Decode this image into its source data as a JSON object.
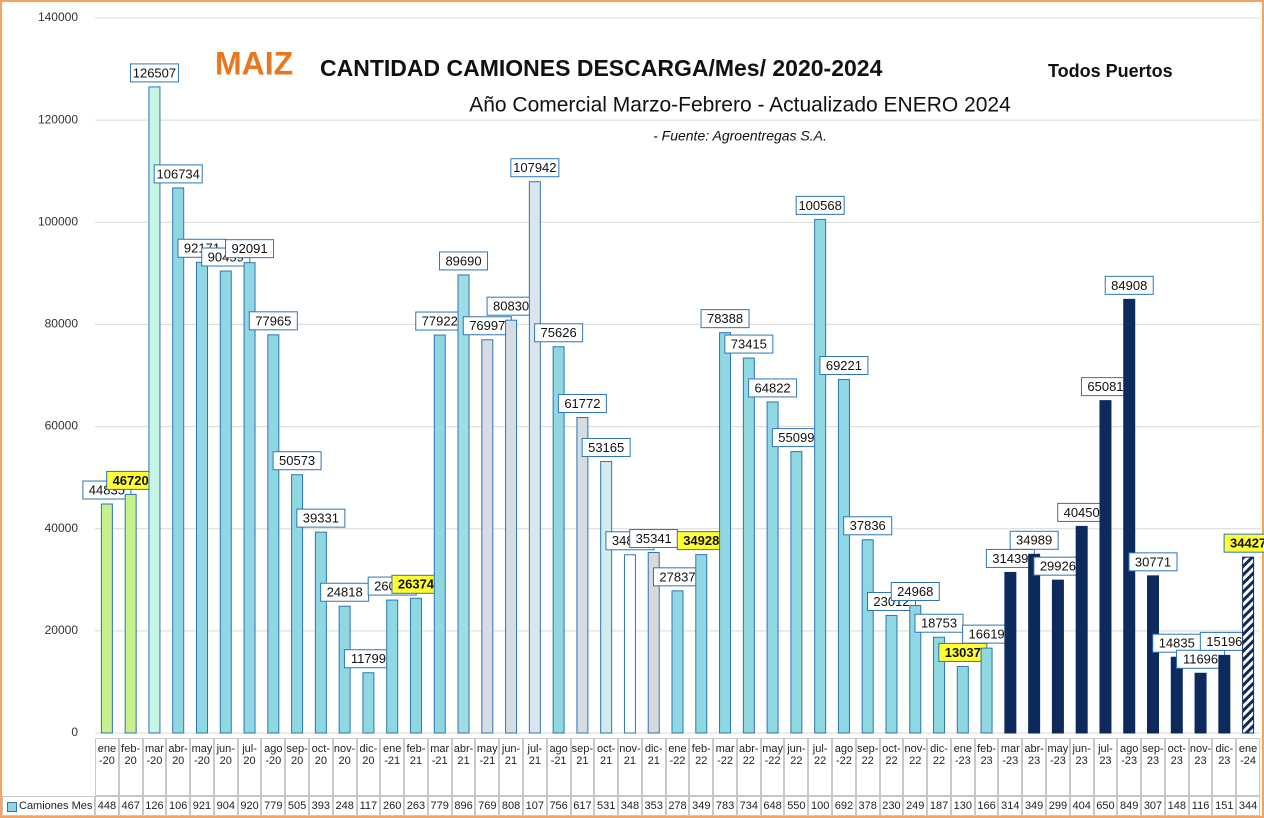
{
  "chart_data": {
    "type": "bar",
    "title_highlight": "MAIZ",
    "title": "CANTIDAD CAMIONES DESCARGA/Mes/ 2020-2024",
    "title_suffix": "Todos Puertos",
    "subtitle": "Año Comercial Marzo-Febrero - Actualizado ENERO  2024",
    "source": "- Fuente: Agroentregas S.A.",
    "categories": [
      "ene-20",
      "feb-20",
      "mar-20",
      "abr-20",
      "may-20",
      "jun-20",
      "jul-20",
      "ago-20",
      "sep-20",
      "oct-20",
      "nov-20",
      "dic-20",
      "ene-21",
      "feb-21",
      "mar-21",
      "abr-21",
      "may-21",
      "jun-21",
      "jul-21",
      "ago-21",
      "sep-21",
      "oct-21",
      "nov-21",
      "dic-21",
      "ene-22",
      "feb-22",
      "mar-22",
      "abr-22",
      "may-22",
      "jun-22",
      "jul-22",
      "ago-22",
      "sep-22",
      "oct-22",
      "nov-22",
      "dic-22",
      "ene-23",
      "feb-23",
      "mar-23",
      "abr-23",
      "may-23",
      "jun-23",
      "jul-23",
      "ago-23",
      "sep-23",
      "oct-23",
      "nov-23",
      "dic-23",
      "ene-24"
    ],
    "series": [
      {
        "name": "Camiones Mes",
        "values": [
          44835,
          46720,
          126507,
          106734,
          92171,
          90459,
          92091,
          77965,
          50573,
          39331,
          24818,
          11799,
          26028,
          26374,
          77922,
          89690,
          76997,
          80830,
          107942,
          75626,
          61772,
          53165,
          34898,
          35341,
          27837,
          34928,
          78388,
          73415,
          64822,
          55099,
          100568,
          69221,
          37836,
          23012,
          24968,
          18753,
          13037,
          16619,
          31439,
          34989,
          29926,
          40450,
          65081,
          84908,
          30771,
          14835,
          11696,
          15196,
          34427
        ],
        "table_labels": [
          "448",
          "467",
          "126",
          "106",
          "921",
          "904",
          "920",
          "779",
          "505",
          "393",
          "248",
          "117",
          "260",
          "263",
          "779",
          "896",
          "769",
          "808",
          "107",
          "756",
          "617",
          "531",
          "348",
          "353",
          "278",
          "349",
          "783",
          "734",
          "648",
          "550",
          "100",
          "692",
          "378",
          "230",
          "249",
          "187",
          "130",
          "166",
          "314",
          "349",
          "299",
          "404",
          "650",
          "849",
          "307",
          "148",
          "116",
          "151",
          "344"
        ],
        "colors": [
          "#c5f08a",
          "#c5f08a",
          "#c8f4e6",
          "#8fd8e2",
          "#8fd8e2",
          "#8fd8e2",
          "#8fd8e2",
          "#8fd8e2",
          "#8fd8e2",
          "#8fd8e2",
          "#8fd8e2",
          "#8fd8e2",
          "#8fd8e2",
          "#8fd8e2",
          "#8fd8e2",
          "#9fdce6",
          "#d7dbe2",
          "#d7dbe2",
          "#dce5ee",
          "#8fd8e2",
          "#d7dbe2",
          "#d0ecec",
          "#ffffff",
          "#d9d9d9",
          "#8fd8e2",
          "#8fd8e2",
          "#8fd8e2",
          "#8fd8e2",
          "#8fd8e2",
          "#8fd8e2",
          "#8fd8e2",
          "#8fd8e2",
          "#8fd8e2",
          "#8fd8e2",
          "#8fd8e2",
          "#8fd8e2",
          "#8fd8e2",
          "#8fd8e2",
          "#0d2a5c",
          "#0d2a5c",
          "#0d2a5c",
          "#0d2a5c",
          "#0d2a5c",
          "#0d2a5c",
          "#0d2a5c",
          "#0d2a5c",
          "#0d2a5c",
          "#0d2a5c",
          "#0d2a5c"
        ],
        "hatched_index": 48,
        "highlight_indices": [
          1,
          13,
          25,
          36,
          48
        ]
      }
    ],
    "ylim": [
      0,
      140000
    ],
    "yticks": [
      0,
      20000,
      40000,
      60000,
      80000,
      100000,
      120000,
      140000
    ],
    "grid": true
  }
}
